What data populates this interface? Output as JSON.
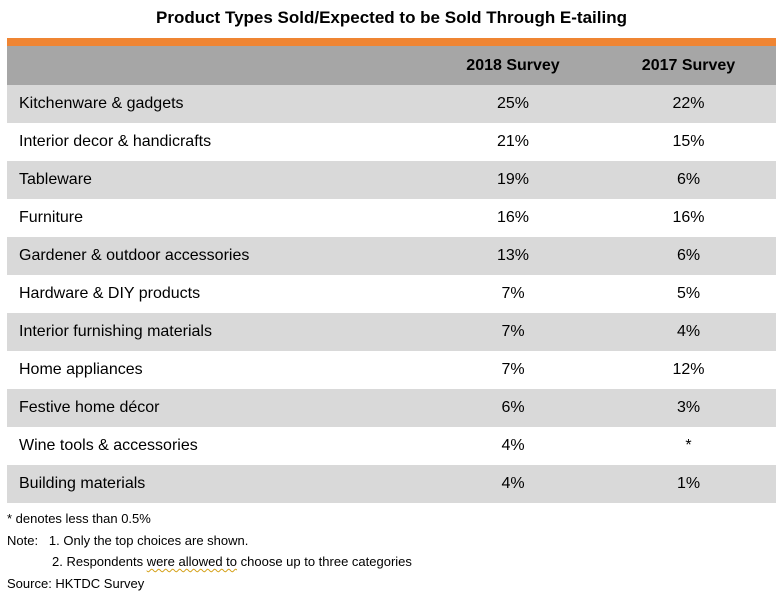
{
  "title": "Product Types Sold/Expected to be Sold Through E-tailing",
  "colors": {
    "accent": "#ef8533",
    "header_bg": "#a6a6a6",
    "alt_row": "#d9d9d9"
  },
  "chart_data": {
    "type": "table",
    "title": "Product Types Sold/Expected to be Sold Through E-tailing",
    "columns": [
      "",
      "2018 Survey",
      "2017 Survey"
    ],
    "rows": [
      [
        "Kitchenware & gadgets",
        "25%",
        "22%"
      ],
      [
        "Interior decor & handicrafts",
        "21%",
        "15%"
      ],
      [
        "Tableware",
        "19%",
        "6%"
      ],
      [
        "Furniture",
        "16%",
        "16%"
      ],
      [
        "Gardener & outdoor accessories",
        "13%",
        "6%"
      ],
      [
        "Hardware & DIY products",
        "7%",
        "5%"
      ],
      [
        "Interior furnishing materials",
        "7%",
        "4%"
      ],
      [
        "Home appliances",
        "7%",
        "12%"
      ],
      [
        "Festive home décor",
        "6%",
        "3%"
      ],
      [
        "Wine tools & accessories",
        "4%",
        "*"
      ],
      [
        "Building materials",
        "4%",
        "1%"
      ]
    ]
  },
  "notes": {
    "footnote": "* denotes less than 0.5%",
    "note1": "Note:   1. Only the top choices are shown.",
    "note2_pre": "2. Respondents ",
    "note2_marked": "were allowed to",
    "note2_post": " choose up to three categories",
    "source": "Source: HKTDC Survey"
  }
}
